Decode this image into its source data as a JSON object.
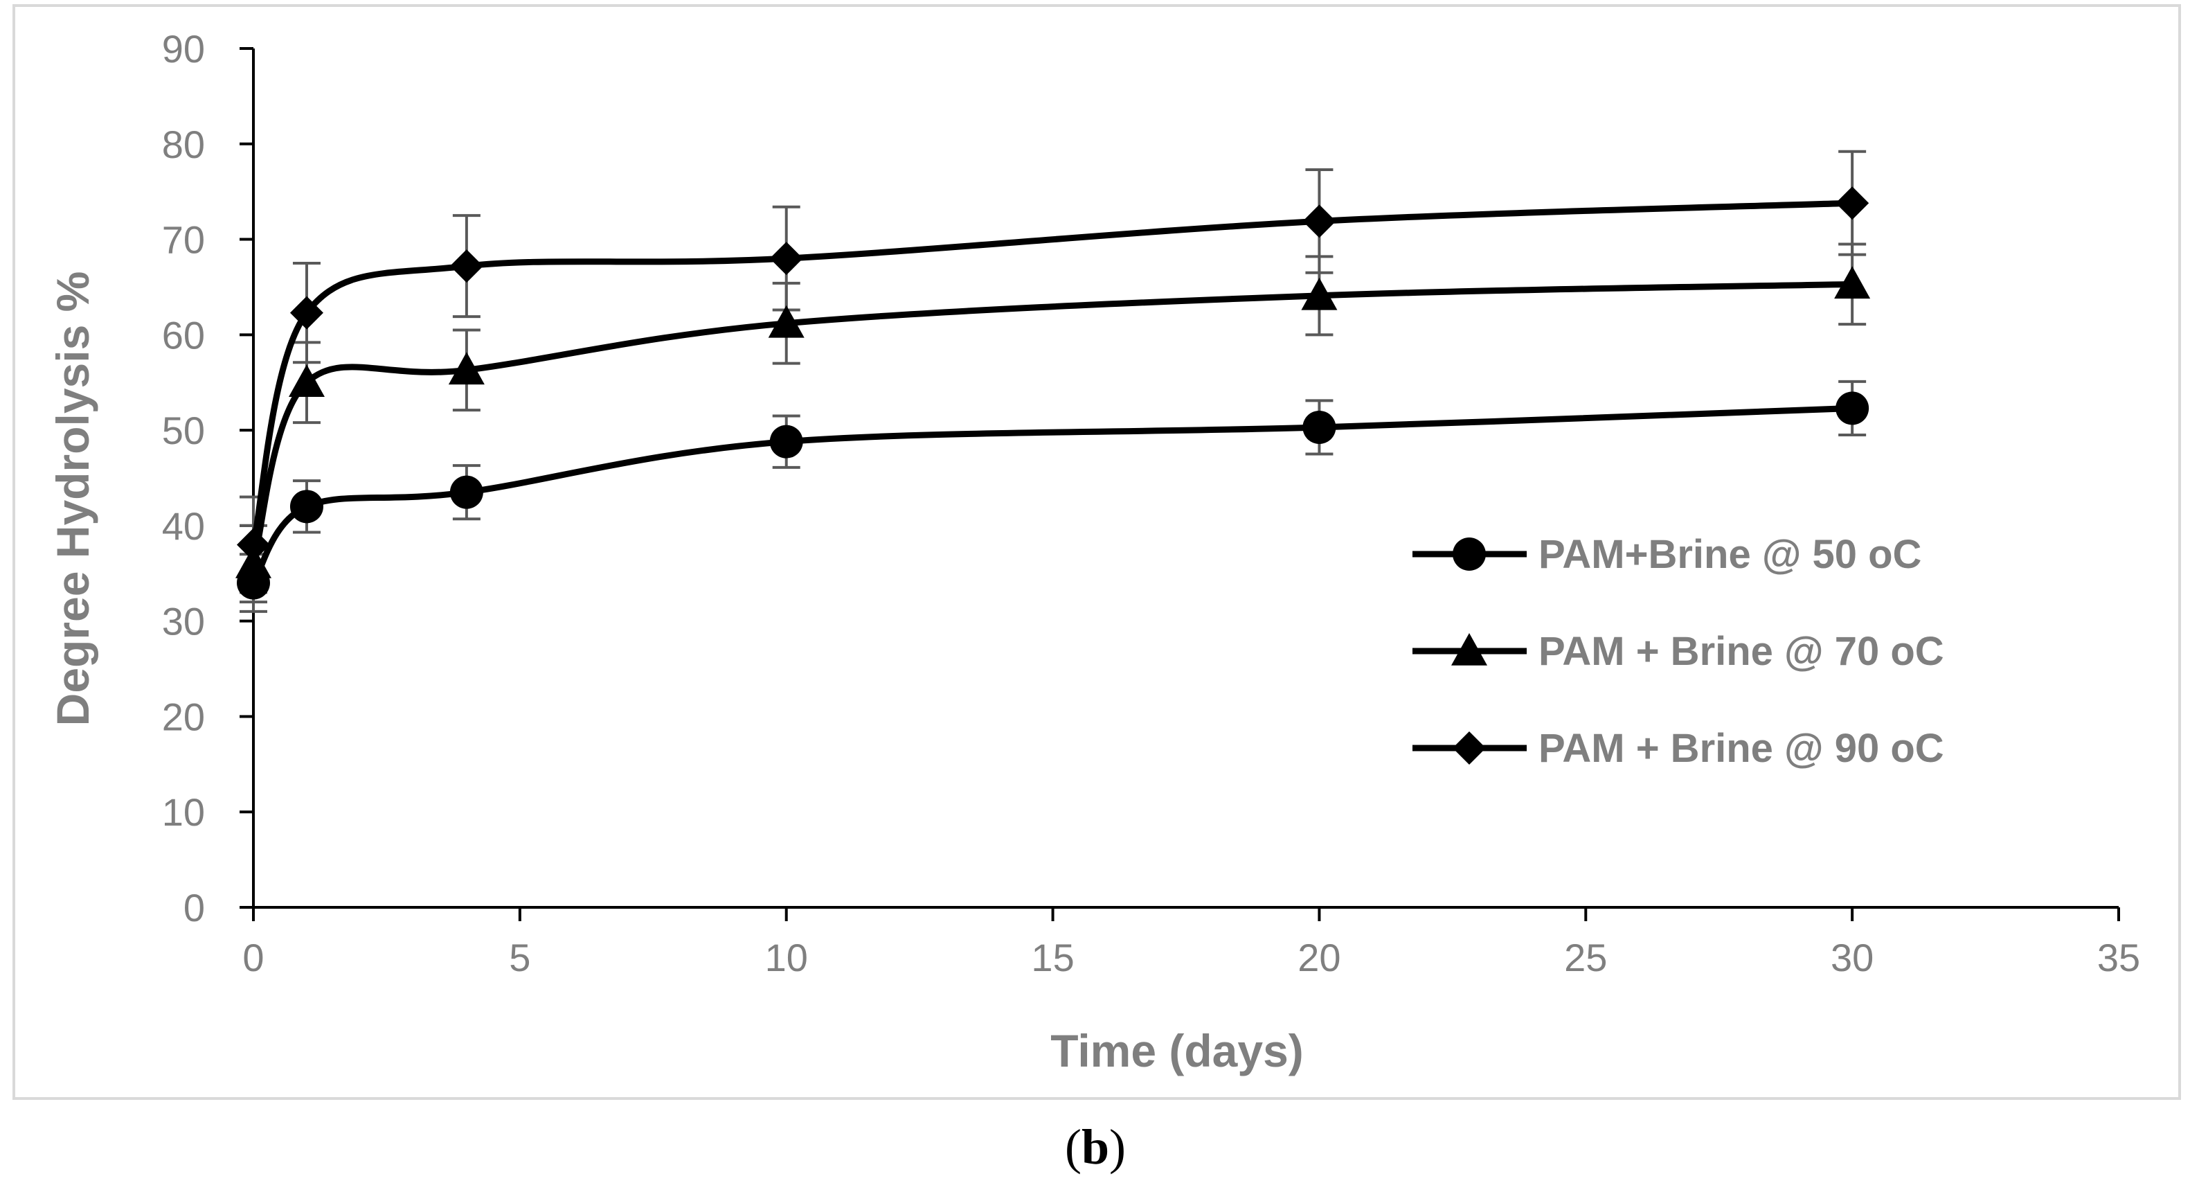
{
  "chart_data": {
    "type": "line",
    "title": "",
    "xlabel": "Time (days)",
    "ylabel": "Degree  Hydrolysis %",
    "xlim": [
      0,
      35
    ],
    "ylim": [
      0,
      90
    ],
    "xticks": [
      0,
      5,
      10,
      15,
      20,
      25,
      30,
      35
    ],
    "yticks": [
      0,
      10,
      20,
      30,
      40,
      50,
      60,
      70,
      80,
      90
    ],
    "grid": false,
    "legend_position": "right-middle",
    "series": [
      {
        "name": "PAM+Brine @ 50 oC",
        "marker": "circle",
        "x": [
          0,
          1,
          4,
          10,
          20,
          30
        ],
        "y": [
          34,
          42,
          43.5,
          48.8,
          50.3,
          52.3
        ],
        "error": [
          3.0,
          2.7,
          2.8,
          2.7,
          2.8,
          2.8
        ]
      },
      {
        "name": "PAM + Brine @ 70 oC",
        "marker": "triangle",
        "x": [
          0,
          1,
          4,
          10,
          20,
          30
        ],
        "y": [
          36,
          55,
          56.3,
          61.2,
          64.1,
          65.3
        ],
        "error": [
          4.0,
          4.2,
          4.2,
          4.2,
          4.1,
          4.2
        ]
      },
      {
        "name": "PAM + Brine @ 90 oC",
        "marker": "diamond",
        "x": [
          0,
          1,
          4,
          10,
          20,
          30
        ],
        "y": [
          38,
          62.3,
          67.2,
          68,
          71.9,
          73.8
        ],
        "error": [
          5.0,
          5.2,
          5.3,
          5.4,
          5.4,
          5.4
        ]
      }
    ]
  },
  "caption": {
    "open": "(",
    "letter": "b",
    "close": ")"
  },
  "colors": {
    "series": "#000000",
    "error_bar": "#595959",
    "axis": "#000000",
    "text": "#7f7f7f",
    "frame": "#d9d9d9"
  }
}
